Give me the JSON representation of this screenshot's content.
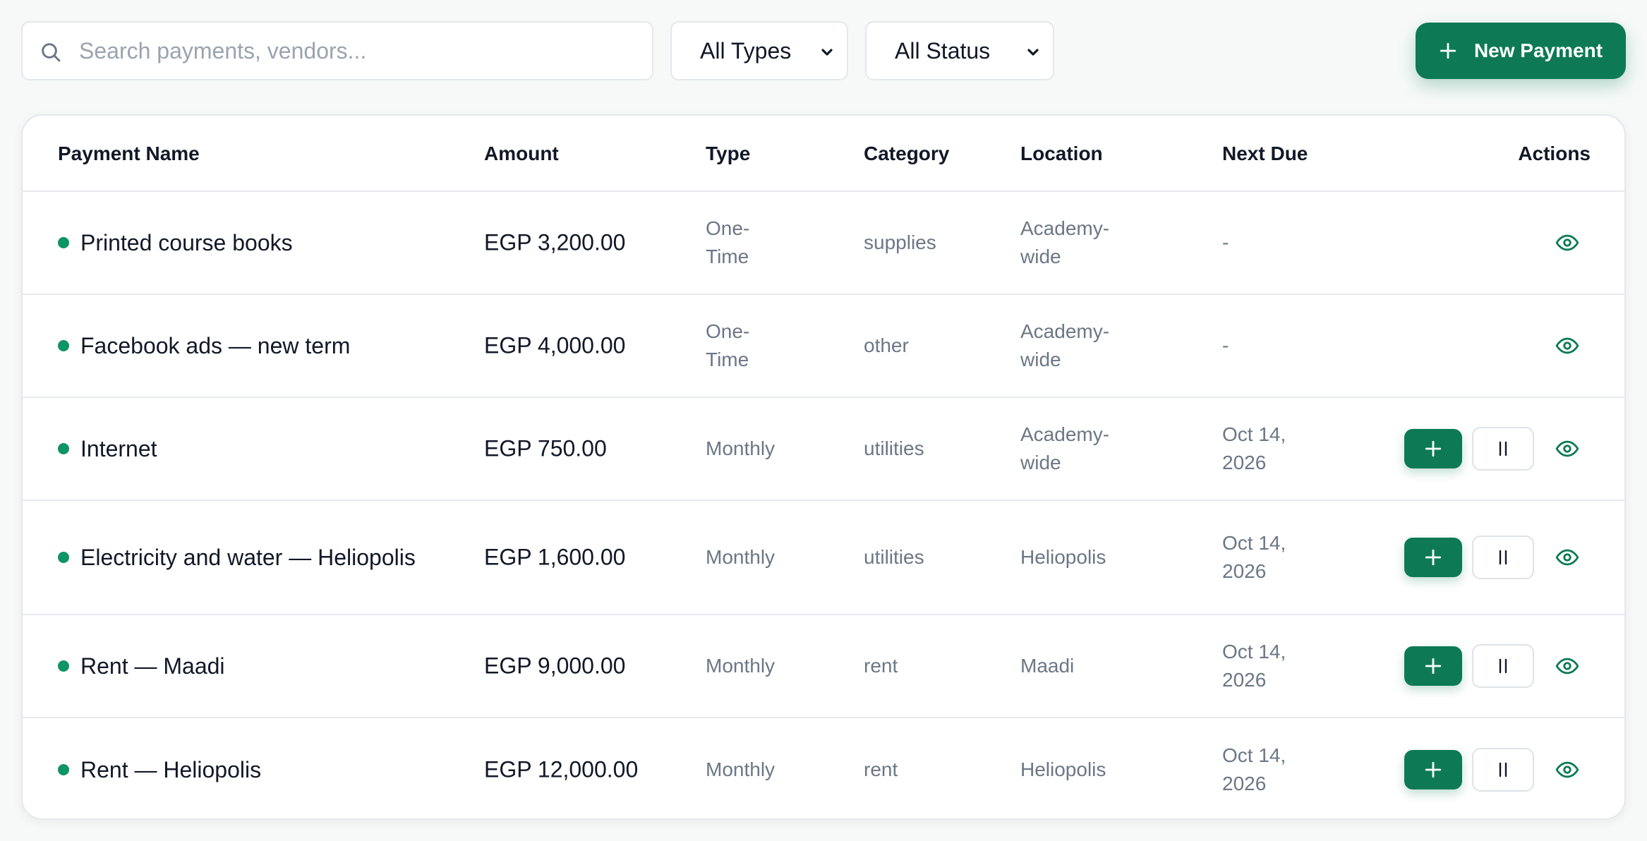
{
  "search": {
    "placeholder": "Search payments, vendors...",
    "icon": "search-icon"
  },
  "filters": {
    "type_selected": "All Types",
    "status_selected": "All Status"
  },
  "new_button": {
    "label": "New Payment",
    "icon": "plus-icon"
  },
  "colors": {
    "accent": "#0d7a55",
    "status_dot": "#0f9464",
    "muted_text": "#6b7785"
  },
  "table": {
    "headers": {
      "name": "Payment Name",
      "amount": "Amount",
      "type": "Type",
      "category": "Category",
      "location": "Location",
      "next_due": "Next Due",
      "actions": "Actions"
    },
    "rows": [
      {
        "name": "Printed course books",
        "amount": "EGP 3,200.00",
        "type": "One-Time",
        "category": "supplies",
        "location": "Academy-wide",
        "next_due": "-",
        "recurring": false
      },
      {
        "name": "Facebook ads — new term",
        "amount": "EGP 4,000.00",
        "type": "One-Time",
        "category": "other",
        "location": "Academy-wide",
        "next_due": "-",
        "recurring": false
      },
      {
        "name": "Internet",
        "amount": "EGP 750.00",
        "type": "Monthly",
        "category": "utilities",
        "location": "Academy-wide",
        "next_due": "Oct 14, 2026",
        "recurring": true
      },
      {
        "name": "Electricity and water — Heliopolis",
        "amount": "EGP 1,600.00",
        "type": "Monthly",
        "category": "utilities",
        "location": "Heliopolis",
        "next_due": "Oct 14, 2026",
        "recurring": true
      },
      {
        "name": "Rent — Maadi",
        "amount": "EGP 9,000.00",
        "type": "Monthly",
        "category": "rent",
        "location": "Maadi",
        "next_due": "Oct 14, 2026",
        "recurring": true
      },
      {
        "name": "Rent — Heliopolis",
        "amount": "EGP 12,000.00",
        "type": "Monthly",
        "category": "rent",
        "location": "Heliopolis",
        "next_due": "Oct 14, 2026",
        "recurring": true
      }
    ]
  }
}
